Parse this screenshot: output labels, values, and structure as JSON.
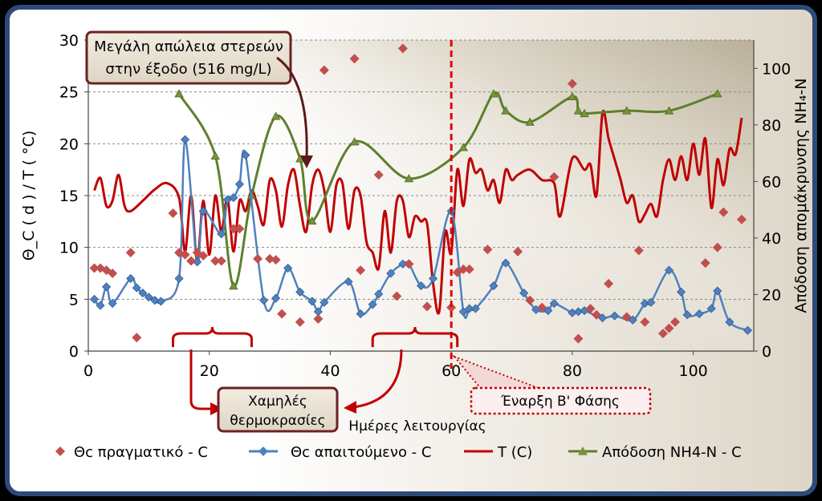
{
  "chart_data": {
    "type": "line",
    "x_range": [
      0,
      110
    ],
    "x_ticks": [
      0,
      20,
      40,
      60,
      80,
      100
    ],
    "y_left_range": [
      0,
      30
    ],
    "y_left_ticks": [
      0,
      5,
      10,
      15,
      20,
      25,
      30
    ],
    "y_right_range": [
      0,
      110
    ],
    "y_right_ticks": [
      0,
      20,
      40,
      60,
      80,
      100
    ],
    "xlabel": "Ημέρες λειτουργίας",
    "ylabel_left": "Θ_C ( d ) / T ( °C)",
    "ylabel_right": "Απόδοση απομάκρυνσης NH₄-N",
    "grid": "horizontal dashed",
    "legend_position": "bottom",
    "series": [
      {
        "name": "Θc πραγματικό - C",
        "style": "markers",
        "marker": "diamond",
        "axis": "left",
        "color": "#C0504D",
        "points": [
          [
            1,
            8
          ],
          [
            2,
            8
          ],
          [
            3,
            7.8
          ],
          [
            4,
            7.5
          ],
          [
            7,
            9.5
          ],
          [
            8,
            1.3
          ],
          [
            14,
            13.3
          ],
          [
            15,
            9.5
          ],
          [
            16,
            9.3
          ],
          [
            17,
            8.7
          ],
          [
            18,
            9.5
          ],
          [
            19,
            9.2
          ],
          [
            21,
            8.7
          ],
          [
            22,
            8.7
          ],
          [
            24,
            11.8
          ],
          [
            25,
            11.8
          ],
          [
            28,
            8.9
          ],
          [
            30,
            8.9
          ],
          [
            31,
            8.8
          ],
          [
            32,
            3.6
          ],
          [
            35,
            2.8
          ],
          [
            38,
            3.1
          ],
          [
            39,
            27.1
          ],
          [
            44,
            28.2
          ],
          [
            45,
            7.8
          ],
          [
            48,
            17
          ],
          [
            51,
            5.3
          ],
          [
            52,
            29.2
          ],
          [
            53,
            8.4
          ],
          [
            56,
            4.3
          ],
          [
            60,
            4.2
          ],
          [
            61,
            7.6
          ],
          [
            62,
            7.9
          ],
          [
            63,
            7.9
          ],
          [
            66,
            9.8
          ],
          [
            71,
            9.6
          ],
          [
            73,
            4.9
          ],
          [
            75,
            4.2
          ],
          [
            77,
            16.8
          ],
          [
            80,
            25.8
          ],
          [
            81,
            1.2
          ],
          [
            83,
            4.1
          ],
          [
            84,
            3.5
          ],
          [
            86,
            6.5
          ],
          [
            89,
            3.3
          ],
          [
            91,
            9.7
          ],
          [
            92,
            2.8
          ],
          [
            95,
            1.7
          ],
          [
            96,
            2.2
          ],
          [
            97,
            2.8
          ],
          [
            102,
            8.5
          ],
          [
            104,
            10
          ],
          [
            105,
            13.4
          ],
          [
            108,
            12.7
          ]
        ]
      },
      {
        "name": "Θc απαιτούμενο - C",
        "style": "line+markers",
        "marker": "diamond",
        "axis": "left",
        "color": "#4F81BD",
        "points": [
          [
            1,
            5
          ],
          [
            2,
            4.4
          ],
          [
            3,
            6.2
          ],
          [
            4,
            4.6
          ],
          [
            7,
            7
          ],
          [
            8,
            6.1
          ],
          [
            9,
            5.6
          ],
          [
            10,
            5.2
          ],
          [
            11,
            4.9
          ],
          [
            12,
            4.8
          ],
          [
            15,
            7
          ],
          [
            16,
            20.4
          ],
          [
            18,
            8.6
          ],
          [
            19,
            13.5
          ],
          [
            22,
            11.3
          ],
          [
            23,
            14.6
          ],
          [
            24,
            14.8
          ],
          [
            25,
            16.1
          ],
          [
            26,
            18.9
          ],
          [
            29,
            4.9
          ],
          [
            31,
            5.1
          ],
          [
            33,
            8
          ],
          [
            35,
            5.7
          ],
          [
            37,
            4.8
          ],
          [
            38,
            3.8
          ],
          [
            39,
            4.7
          ],
          [
            43,
            6.7
          ],
          [
            45,
            3.6
          ],
          [
            47,
            4.5
          ],
          [
            48,
            5.5
          ],
          [
            50,
            7.5
          ],
          [
            52,
            8.4
          ],
          [
            53,
            8.4
          ],
          [
            55,
            6.3
          ],
          [
            57,
            7
          ],
          [
            60,
            13.5
          ],
          [
            62,
            3.8
          ],
          [
            63,
            4.1
          ],
          [
            64,
            4.1
          ],
          [
            67,
            6.3
          ],
          [
            69,
            8.5
          ],
          [
            72,
            5.6
          ],
          [
            74,
            4
          ],
          [
            76,
            3.9
          ],
          [
            77,
            4.6
          ],
          [
            80,
            3.7
          ],
          [
            81,
            3.8
          ],
          [
            82,
            3.9
          ],
          [
            85,
            3.2
          ],
          [
            87,
            3.4
          ],
          [
            90,
            3
          ],
          [
            92,
            4.6
          ],
          [
            93,
            4.7
          ],
          [
            96,
            7.8
          ],
          [
            98,
            5.7
          ],
          [
            99,
            3.5
          ],
          [
            101,
            3.6
          ],
          [
            103,
            4.1
          ],
          [
            104,
            5.8
          ],
          [
            106,
            2.8
          ],
          [
            109,
            2
          ]
        ]
      },
      {
        "name": "T (C)",
        "style": "smooth-line",
        "axis": "left",
        "color": "#C00000",
        "points": [
          [
            1,
            15.5
          ],
          [
            2,
            16.7
          ],
          [
            3,
            14
          ],
          [
            4,
            14.5
          ],
          [
            5,
            17
          ],
          [
            6,
            14
          ],
          [
            7,
            13.5
          ],
          [
            9,
            14.5
          ],
          [
            11,
            15.6
          ],
          [
            13,
            16.2
          ],
          [
            15,
            14.8
          ],
          [
            16,
            9.6
          ],
          [
            17,
            15
          ],
          [
            18,
            8.6
          ],
          [
            19,
            14.5
          ],
          [
            20,
            9.3
          ],
          [
            21,
            15
          ],
          [
            22,
            11.5
          ],
          [
            23,
            14.8
          ],
          [
            24,
            9.6
          ],
          [
            25,
            14.5
          ],
          [
            26,
            13.5
          ],
          [
            27,
            15.5
          ],
          [
            28,
            14
          ],
          [
            29,
            12.2
          ],
          [
            30,
            16.5
          ],
          [
            31,
            15.5
          ],
          [
            32,
            12
          ],
          [
            33,
            16
          ],
          [
            34,
            17.5
          ],
          [
            35,
            14
          ],
          [
            36,
            11.5
          ],
          [
            37,
            16
          ],
          [
            38,
            17.5
          ],
          [
            39,
            15.5
          ],
          [
            40,
            11.5
          ],
          [
            41,
            16
          ],
          [
            42,
            16.2
          ],
          [
            43,
            11.8
          ],
          [
            44,
            15.5
          ],
          [
            45,
            15
          ],
          [
            46,
            10.5
          ],
          [
            47,
            9.5
          ],
          [
            48,
            8
          ],
          [
            49,
            13.5
          ],
          [
            50,
            9.5
          ],
          [
            51,
            14.5
          ],
          [
            52,
            14.5
          ],
          [
            53,
            11
          ],
          [
            54,
            13
          ],
          [
            55,
            12.5
          ],
          [
            56,
            12.3
          ],
          [
            57,
            6.5
          ],
          [
            58,
            3.8
          ],
          [
            59,
            11.5
          ],
          [
            60,
            9.5
          ],
          [
            61,
            17.5
          ],
          [
            62,
            14
          ],
          [
            63,
            18.5
          ],
          [
            64,
            17.2
          ],
          [
            65,
            17.5
          ],
          [
            66,
            15.5
          ],
          [
            67,
            16.5
          ],
          [
            68,
            14.3
          ],
          [
            69,
            17.5
          ],
          [
            70,
            16.5
          ],
          [
            71,
            17
          ],
          [
            73,
            17.5
          ],
          [
            75,
            16.5
          ],
          [
            77,
            16.2
          ],
          [
            78,
            13
          ],
          [
            80,
            18.6
          ],
          [
            82,
            17.5
          ],
          [
            83,
            18
          ],
          [
            84,
            15
          ],
          [
            85,
            23
          ],
          [
            86,
            20.5
          ],
          [
            87,
            18.5
          ],
          [
            88,
            16.5
          ],
          [
            89,
            14.3
          ],
          [
            90,
            15
          ],
          [
            91,
            12.5
          ],
          [
            92,
            13.2
          ],
          [
            93,
            14.2
          ],
          [
            94,
            13
          ],
          [
            95,
            16.5
          ],
          [
            96,
            18.5
          ],
          [
            97,
            16.5
          ],
          [
            98,
            18.8
          ],
          [
            99,
            16.5
          ],
          [
            100,
            20
          ],
          [
            101,
            17
          ],
          [
            102,
            20.5
          ],
          [
            103,
            13.8
          ],
          [
            104,
            18.5
          ],
          [
            105,
            16
          ],
          [
            106,
            19.5
          ],
          [
            107,
            19
          ],
          [
            108,
            22.5
          ]
        ]
      },
      {
        "name": "Απόδοση NH4-N - C",
        "style": "smooth-line+markers",
        "marker": "triangle",
        "axis": "right",
        "color": "#5E7F2E",
        "points": [
          [
            15,
            91
          ],
          [
            21,
            69
          ],
          [
            24,
            23
          ],
          [
            27,
            55
          ],
          [
            31,
            83
          ],
          [
            35,
            68
          ],
          [
            37,
            46
          ],
          [
            44,
            74
          ],
          [
            53,
            61
          ],
          [
            62,
            72
          ],
          [
            67,
            91
          ],
          [
            69,
            85
          ],
          [
            73,
            81
          ],
          [
            80,
            90
          ],
          [
            81,
            85
          ],
          [
            82,
            84
          ],
          [
            89,
            85
          ],
          [
            96,
            85
          ],
          [
            104,
            91
          ]
        ]
      }
    ],
    "annotations": [
      {
        "text_line1": "Μεγάλη απώλεια στερεών",
        "text_line2": "στην έξοδο (516 mg/L)",
        "points_to": "day 37"
      },
      {
        "text_line1": "Χαμηλές",
        "text_line2": "θερμοκρασίες",
        "brackets": [
          [
            14,
            27
          ],
          [
            47,
            61
          ]
        ]
      },
      {
        "text": "Έναρξη Β' Φάσης",
        "vertical_line_at_x": 60
      }
    ]
  },
  "legend": {
    "item1": "Θc πραγματικό - C",
    "item2": "Θc απαιτούμενο - C",
    "item3": "T (C)",
    "item4": "Απόδοση NH4-N - C"
  }
}
